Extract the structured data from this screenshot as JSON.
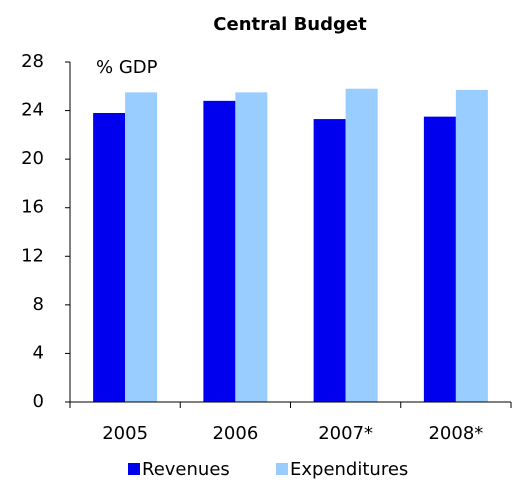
{
  "chart_data": {
    "type": "bar",
    "title": "Central Budget",
    "annotation": "% GDP",
    "categories": [
      "2005",
      "2006",
      "2007*",
      "2008*"
    ],
    "series": [
      {
        "name": "Revenues",
        "color": "#0000ee",
        "values": [
          23.8,
          24.8,
          23.3,
          23.5
        ]
      },
      {
        "name": "Expenditures",
        "color": "#99ccff",
        "values": [
          25.5,
          25.5,
          25.8,
          25.7
        ]
      }
    ],
    "ylim": [
      0,
      28
    ],
    "yticks": [
      0,
      4,
      8,
      12,
      16,
      20,
      24,
      28
    ],
    "grid": false,
    "legend": "bottom"
  }
}
